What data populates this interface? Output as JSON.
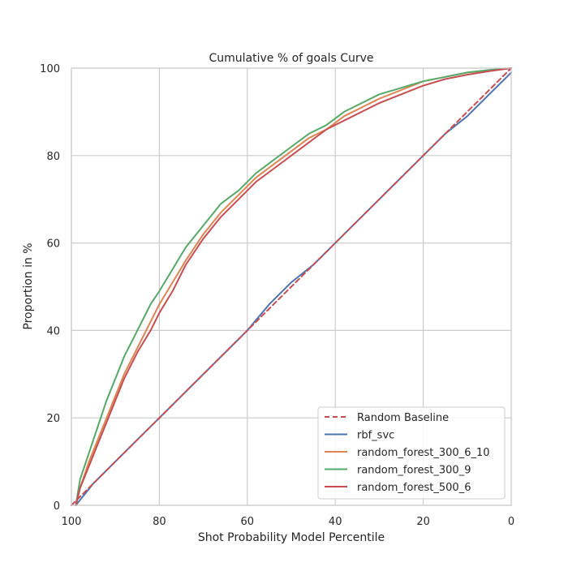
{
  "chart_data": {
    "type": "line",
    "title": "Cumulative % of goals Curve",
    "xlabel": "Shot Probability Model Percentile",
    "ylabel": "Proportion in %",
    "xlim": [
      100,
      0
    ],
    "ylim": [
      0,
      100
    ],
    "x_ticks": [
      "100",
      "80",
      "60",
      "40",
      "20",
      "0"
    ],
    "y_ticks": [
      "0",
      "20",
      "40",
      "60",
      "80",
      "100"
    ],
    "grid": true,
    "legend_position": "lower-right",
    "series": [
      {
        "name": "Random Baseline",
        "color": "#c44e52",
        "dashed": true,
        "points": [
          [
            100,
            0
          ],
          [
            0,
            100
          ]
        ]
      },
      {
        "name": "rbf_svc",
        "color": "#4c72b0",
        "dashed": false,
        "points": [
          [
            99,
            0
          ],
          [
            95,
            5
          ],
          [
            90,
            10
          ],
          [
            85,
            15
          ],
          [
            80,
            20
          ],
          [
            75,
            25
          ],
          [
            70,
            30
          ],
          [
            65,
            35
          ],
          [
            60,
            40
          ],
          [
            55,
            46
          ],
          [
            50,
            51
          ],
          [
            45,
            55
          ],
          [
            40,
            60
          ],
          [
            35,
            65
          ],
          [
            30,
            70
          ],
          [
            25,
            75
          ],
          [
            20,
            80
          ],
          [
            15,
            85
          ],
          [
            10,
            89
          ],
          [
            5,
            94
          ],
          [
            2,
            97
          ],
          [
            0,
            99
          ]
        ]
      },
      {
        "name": "random_forest_300_6_10",
        "color": "#dd8452",
        "dashed": false,
        "points": [
          [
            99,
            0
          ],
          [
            98,
            4
          ],
          [
            96,
            10
          ],
          [
            94,
            15
          ],
          [
            92,
            20
          ],
          [
            90,
            25
          ],
          [
            88,
            30
          ],
          [
            85,
            36
          ],
          [
            82,
            42
          ],
          [
            80,
            46
          ],
          [
            77,
            51
          ],
          [
            74,
            56
          ],
          [
            70,
            62
          ],
          [
            66,
            67
          ],
          [
            62,
            71
          ],
          [
            58,
            75
          ],
          [
            54,
            78
          ],
          [
            50,
            81
          ],
          [
            46,
            84
          ],
          [
            42,
            86
          ],
          [
            38,
            89
          ],
          [
            34,
            91
          ],
          [
            30,
            93
          ],
          [
            25,
            95
          ],
          [
            20,
            97
          ],
          [
            15,
            98
          ],
          [
            10,
            99
          ],
          [
            5,
            99.5
          ],
          [
            0,
            100
          ]
        ]
      },
      {
        "name": "random_forest_300_9",
        "color": "#55a868",
        "dashed": false,
        "points": [
          [
            99,
            0
          ],
          [
            98,
            6
          ],
          [
            96,
            12
          ],
          [
            94,
            18
          ],
          [
            92,
            24
          ],
          [
            90,
            29
          ],
          [
            88,
            34
          ],
          [
            85,
            40
          ],
          [
            82,
            46
          ],
          [
            80,
            49
          ],
          [
            77,
            54
          ],
          [
            74,
            59
          ],
          [
            70,
            64
          ],
          [
            66,
            69
          ],
          [
            62,
            72
          ],
          [
            58,
            76
          ],
          [
            54,
            79
          ],
          [
            50,
            82
          ],
          [
            46,
            85
          ],
          [
            42,
            87
          ],
          [
            38,
            90
          ],
          [
            34,
            92
          ],
          [
            30,
            94
          ],
          [
            25,
            95.5
          ],
          [
            20,
            97
          ],
          [
            15,
            98
          ],
          [
            10,
            99
          ],
          [
            5,
            99.6
          ],
          [
            0,
            100
          ]
        ]
      },
      {
        "name": "random_forest_500_6",
        "color": "#c44e52",
        "dashed": false,
        "points": [
          [
            99,
            0
          ],
          [
            98,
            4
          ],
          [
            96,
            9
          ],
          [
            94,
            14
          ],
          [
            92,
            19
          ],
          [
            90,
            24
          ],
          [
            88,
            29
          ],
          [
            85,
            35
          ],
          [
            82,
            40
          ],
          [
            80,
            44
          ],
          [
            77,
            49
          ],
          [
            74,
            55
          ],
          [
            70,
            61
          ],
          [
            66,
            66
          ],
          [
            62,
            70
          ],
          [
            58,
            74
          ],
          [
            54,
            77
          ],
          [
            50,
            80
          ],
          [
            46,
            83
          ],
          [
            42,
            86
          ],
          [
            38,
            88
          ],
          [
            34,
            90
          ],
          [
            30,
            92
          ],
          [
            25,
            94
          ],
          [
            20,
            96
          ],
          [
            15,
            97.5
          ],
          [
            10,
            98.5
          ],
          [
            5,
            99.3
          ],
          [
            0,
            100
          ]
        ]
      }
    ]
  }
}
